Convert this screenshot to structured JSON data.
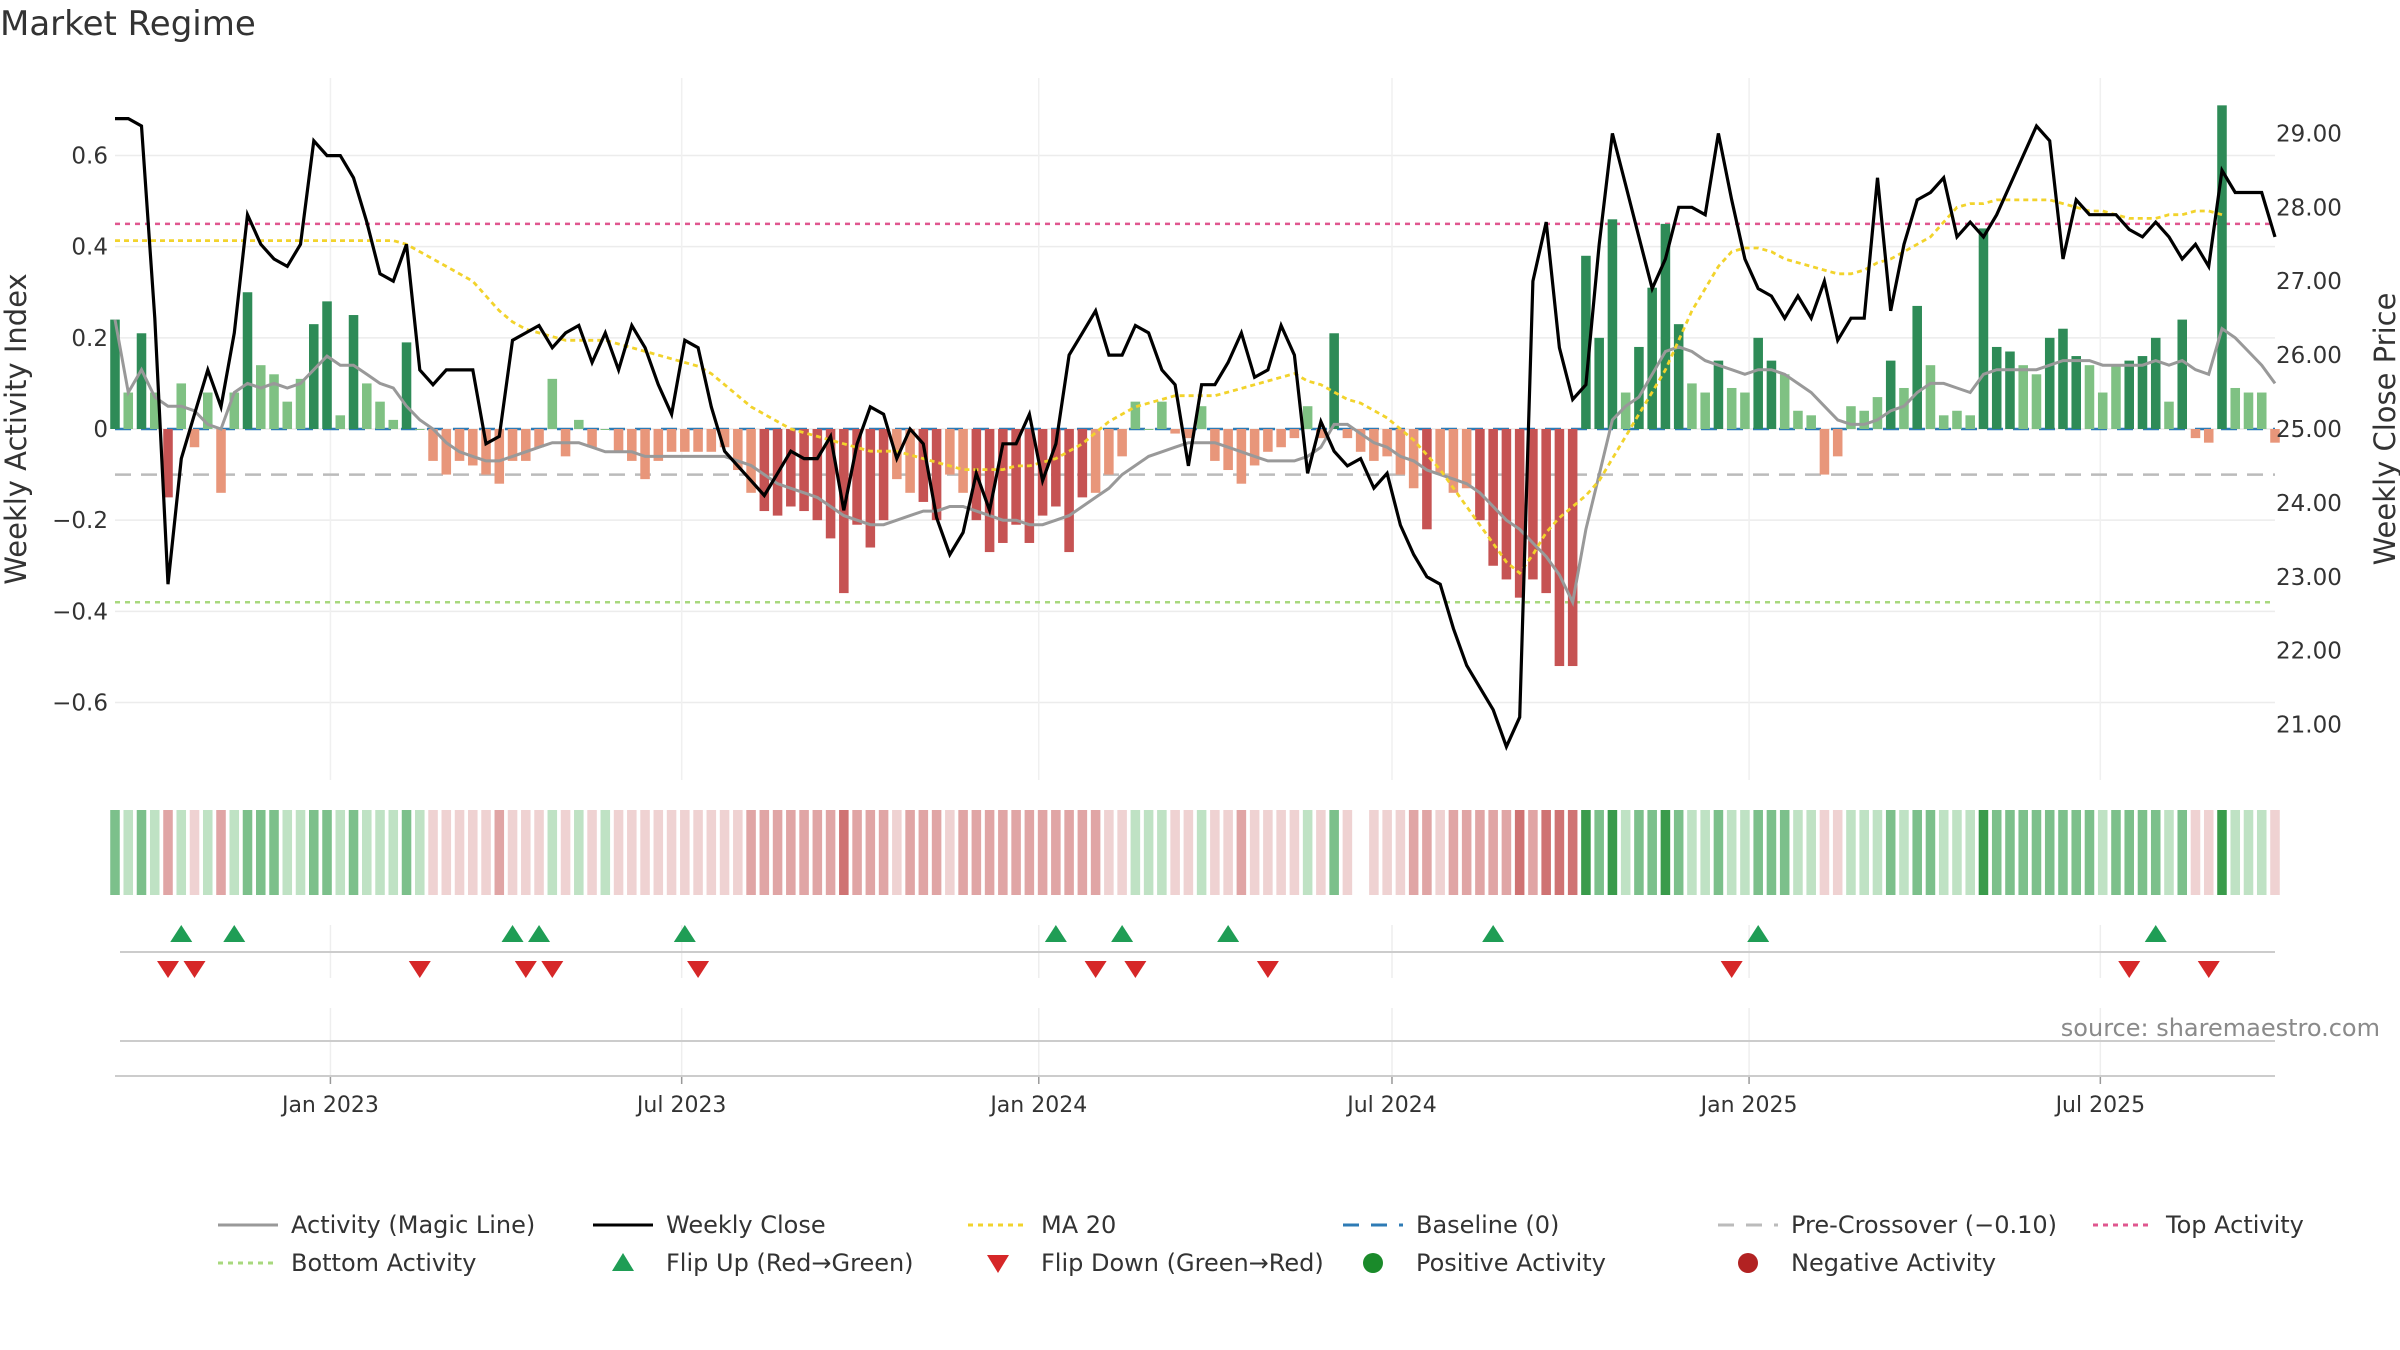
{
  "title": "Market Regime",
  "source": "source: sharemaestro.com",
  "chart_data": {
    "type": "bar",
    "title": "Market Regime",
    "ylabel_left": "Weekly Activity Index",
    "ylabel_right": "Weekly Close Price",
    "ylim_left": [
      -0.77,
      0.77
    ],
    "ylim_right": [
      20.25,
      29.75
    ],
    "yticks_left": [
      -0.6,
      -0.4,
      -0.2,
      0,
      0.2,
      0.4,
      0.6
    ],
    "yticks_left_labels": [
      "−0.6",
      "−0.4",
      "−0.2",
      "0",
      "0.2",
      "0.4",
      "0.6"
    ],
    "yticks_right": [
      21,
      22,
      23,
      24,
      25,
      26,
      27,
      28,
      29
    ],
    "yticks_right_labels": [
      "21.00",
      "22.00",
      "23.00",
      "24.00",
      "25.00",
      "26.00",
      "27.00",
      "28.00",
      "29.00"
    ],
    "x_start": "2022-09-12",
    "x_end": "2025-09-29",
    "x_ticks": [
      "2023-01-01",
      "2023-07-01",
      "2024-01-01",
      "2024-07-01",
      "2025-01-01",
      "2025-07-01"
    ],
    "x_tick_labels": [
      "Jan 2023",
      "Jul 2023",
      "Jan 2024",
      "Jul 2024",
      "Jan 2025",
      "Jul 2025"
    ],
    "grid": true,
    "legend_position": "bottom",
    "reference_lines": {
      "baseline": 0,
      "pre_crossover": -0.1,
      "top_activity": 0.45,
      "bottom_activity": -0.38
    },
    "colors": {
      "pos_strong": "#2e8b57",
      "pos_light": "#7fc183",
      "neg_strong": "#c65353",
      "neg_light": "#e8967a",
      "close": "#000000",
      "magic": "#999999",
      "ma20": "#f2d32c",
      "baseline": "#2e7bb5",
      "pre_crossover": "#bbbbbb",
      "top_activity": "#e0578f",
      "bottom_activity": "#a8d87e",
      "flip_up": "#1f9d55",
      "flip_down": "#d62728",
      "positive_dot": "#1a8a2a",
      "negative_dot": "#b22222"
    },
    "activity": [
      0.24,
      0.08,
      0.21,
      0.08,
      -0.15,
      0.1,
      -0.04,
      0.08,
      -0.14,
      0.08,
      0.3,
      0.14,
      0.12,
      0.06,
      0.11,
      0.23,
      0.28,
      0.03,
      0.25,
      0.1,
      0.06,
      0.02,
      0.19,
      0.0,
      -0.07,
      -0.1,
      -0.07,
      -0.08,
      -0.1,
      -0.12,
      -0.07,
      -0.07,
      -0.04,
      0.11,
      -0.06,
      0.02,
      -0.04,
      0.0,
      -0.05,
      -0.07,
      -0.11,
      -0.07,
      -0.05,
      -0.05,
      -0.05,
      -0.05,
      -0.04,
      -0.09,
      -0.14,
      -0.18,
      -0.19,
      -0.17,
      -0.18,
      -0.2,
      -0.24,
      -0.36,
      -0.21,
      -0.26,
      -0.2,
      -0.11,
      -0.14,
      -0.16,
      -0.2,
      -0.1,
      -0.14,
      -0.2,
      -0.27,
      -0.25,
      -0.21,
      -0.25,
      -0.19,
      -0.17,
      -0.27,
      -0.15,
      -0.14,
      -0.1,
      -0.06,
      0.06,
      0.0,
      0.06,
      -0.01,
      -0.02,
      0.05,
      -0.07,
      -0.09,
      -0.12,
      -0.08,
      -0.05,
      -0.04,
      -0.02,
      0.05,
      -0.02,
      0.21,
      -0.02,
      -0.05,
      -0.07,
      -0.06,
      -0.1,
      -0.13,
      -0.22,
      -0.1,
      -0.14,
      -0.13,
      -0.2,
      -0.3,
      -0.33,
      -0.37,
      -0.33,
      -0.36,
      -0.52,
      -0.52,
      0.38,
      0.2,
      0.46,
      0.08,
      0.18,
      0.31,
      0.45,
      0.23,
      0.1,
      0.08,
      0.15,
      0.09,
      0.08,
      0.2,
      0.15,
      0.12,
      0.04,
      0.03,
      -0.1,
      -0.06,
      0.05,
      0.04,
      0.07,
      0.15,
      0.09,
      0.27,
      0.14,
      0.03,
      0.04,
      0.03,
      0.44,
      0.18,
      0.17,
      0.14,
      0.12,
      0.2,
      0.22,
      0.16,
      0.14,
      0.08,
      0.14,
      0.15,
      0.16,
      0.2,
      0.06,
      0.24,
      -0.02,
      -0.03,
      0.71,
      0.09,
      0.08,
      0.08,
      -0.03
    ],
    "close": [
      29.2,
      29.2,
      29.1,
      26.5,
      22.9,
      24.6,
      25.2,
      25.8,
      25.3,
      26.3,
      27.9,
      27.5,
      27.3,
      27.2,
      27.5,
      28.9,
      28.7,
      28.7,
      28.4,
      27.8,
      27.1,
      27.0,
      27.5,
      25.8,
      25.6,
      25.8,
      25.8,
      25.8,
      24.8,
      24.9,
      26.2,
      26.3,
      26.4,
      26.1,
      26.3,
      26.4,
      25.9,
      26.3,
      25.8,
      26.4,
      26.1,
      25.6,
      25.2,
      26.2,
      26.1,
      25.3,
      24.7,
      24.5,
      24.3,
      24.1,
      24.4,
      24.7,
      24.6,
      24.6,
      24.9,
      23.9,
      24.8,
      25.3,
      25.2,
      24.6,
      25.0,
      24.8,
      23.8,
      23.3,
      23.6,
      24.4,
      23.9,
      24.8,
      24.8,
      25.2,
      24.3,
      24.8,
      26.0,
      26.3,
      26.6,
      26.0,
      26.0,
      26.4,
      26.3,
      25.8,
      25.6,
      24.5,
      25.6,
      25.6,
      25.9,
      26.3,
      25.7,
      25.8,
      26.4,
      26.0,
      24.4,
      25.1,
      24.7,
      24.5,
      24.6,
      24.2,
      24.4,
      23.7,
      23.3,
      23.0,
      22.9,
      22.3,
      21.8,
      21.5,
      21.2,
      20.7,
      21.1,
      27.0,
      27.8,
      26.1,
      25.4,
      25.6,
      27.5,
      29.0,
      28.3,
      27.6,
      26.9,
      27.3,
      28.0,
      28.0,
      27.9,
      29.0,
      28.1,
      27.3,
      26.9,
      26.8,
      26.5,
      26.8,
      26.5,
      27.0,
      26.2,
      26.5,
      26.5,
      28.4,
      26.6,
      27.5,
      28.1,
      28.2,
      28.4,
      27.6,
      27.8,
      27.6,
      27.9,
      28.3,
      28.7,
      29.1,
      28.9,
      27.3,
      28.1,
      27.9,
      27.9,
      27.9,
      27.7,
      27.6,
      27.8,
      27.6,
      27.3,
      27.5,
      27.2,
      28.5,
      28.2,
      28.2,
      28.2,
      27.6
    ],
    "magic": [
      0.24,
      0.08,
      0.13,
      0.07,
      0.05,
      0.05,
      0.04,
      0.01,
      0.0,
      0.08,
      0.1,
      0.09,
      0.1,
      0.09,
      0.1,
      0.13,
      0.16,
      0.14,
      0.14,
      0.12,
      0.1,
      0.09,
      0.05,
      0.02,
      0.0,
      -0.03,
      -0.05,
      -0.06,
      -0.07,
      -0.07,
      -0.06,
      -0.05,
      -0.04,
      -0.03,
      -0.03,
      -0.03,
      -0.04,
      -0.05,
      -0.05,
      -0.05,
      -0.06,
      -0.06,
      -0.06,
      -0.06,
      -0.06,
      -0.06,
      -0.06,
      -0.07,
      -0.08,
      -0.1,
      -0.12,
      -0.13,
      -0.14,
      -0.15,
      -0.17,
      -0.19,
      -0.2,
      -0.21,
      -0.21,
      -0.2,
      -0.19,
      -0.18,
      -0.18,
      -0.17,
      -0.17,
      -0.18,
      -0.19,
      -0.2,
      -0.2,
      -0.21,
      -0.21,
      -0.2,
      -0.19,
      -0.17,
      -0.15,
      -0.13,
      -0.1,
      -0.08,
      -0.06,
      -0.05,
      -0.04,
      -0.03,
      -0.03,
      -0.03,
      -0.04,
      -0.05,
      -0.06,
      -0.07,
      -0.07,
      -0.07,
      -0.06,
      -0.04,
      0.01,
      0.01,
      -0.01,
      -0.03,
      -0.04,
      -0.06,
      -0.07,
      -0.09,
      -0.1,
      -0.11,
      -0.12,
      -0.14,
      -0.17,
      -0.2,
      -0.22,
      -0.25,
      -0.28,
      -0.32,
      -0.38,
      -0.22,
      -0.1,
      0.02,
      0.05,
      0.07,
      0.12,
      0.17,
      0.18,
      0.17,
      0.15,
      0.14,
      0.13,
      0.12,
      0.13,
      0.13,
      0.12,
      0.1,
      0.08,
      0.05,
      0.02,
      0.01,
      0.01,
      0.02,
      0.04,
      0.05,
      0.08,
      0.1,
      0.1,
      0.09,
      0.08,
      0.12,
      0.13,
      0.13,
      0.13,
      0.13,
      0.14,
      0.15,
      0.15,
      0.15,
      0.14,
      0.14,
      0.14,
      0.14,
      0.15,
      0.14,
      0.15,
      0.13,
      0.12,
      0.22,
      0.2,
      0.17,
      0.14,
      0.1
    ],
    "ma20": [
      27.55,
      27.55,
      27.55,
      27.55,
      27.55,
      27.55,
      27.55,
      27.55,
      27.55,
      27.55,
      27.55,
      27.55,
      27.55,
      27.55,
      27.55,
      27.55,
      27.55,
      27.55,
      27.55,
      27.55,
      27.55,
      27.55,
      27.5,
      27.4,
      27.3,
      27.2,
      27.1,
      27.0,
      26.8,
      26.6,
      26.45,
      26.35,
      26.3,
      26.25,
      26.2,
      26.2,
      26.2,
      26.2,
      26.15,
      26.1,
      26.05,
      26.0,
      25.95,
      25.9,
      25.85,
      25.75,
      25.6,
      25.45,
      25.3,
      25.2,
      25.1,
      25.0,
      24.95,
      24.9,
      24.85,
      24.8,
      24.75,
      24.7,
      24.7,
      24.7,
      24.65,
      24.6,
      24.55,
      24.5,
      24.45,
      24.45,
      24.45,
      24.45,
      24.5,
      24.5,
      24.55,
      24.6,
      24.7,
      24.8,
      24.95,
      25.1,
      25.2,
      25.3,
      25.35,
      25.4,
      25.45,
      25.45,
      25.45,
      25.45,
      25.5,
      25.55,
      25.6,
      25.65,
      25.7,
      25.75,
      25.65,
      25.6,
      25.5,
      25.4,
      25.35,
      25.25,
      25.15,
      25.0,
      24.85,
      24.65,
      24.45,
      24.2,
      23.95,
      23.7,
      23.45,
      23.2,
      23.05,
      23.3,
      23.6,
      23.8,
      23.95,
      24.1,
      24.3,
      24.6,
      24.9,
      25.2,
      25.5,
      25.8,
      26.2,
      26.6,
      26.9,
      27.2,
      27.4,
      27.45,
      27.45,
      27.4,
      27.3,
      27.25,
      27.2,
      27.15,
      27.1,
      27.1,
      27.15,
      27.25,
      27.3,
      27.4,
      27.5,
      27.6,
      27.8,
      28.0,
      28.05,
      28.05,
      28.1,
      28.1,
      28.1,
      28.1,
      28.1,
      28.05,
      28.0,
      27.95,
      27.95,
      27.9,
      27.85,
      27.85,
      27.85,
      27.9,
      27.9,
      27.95,
      27.95,
      27.9
    ],
    "flip_up_weeks": [
      5,
      9,
      30,
      32,
      43,
      71,
      76,
      84,
      104,
      124,
      154
    ],
    "flip_down_weeks": [
      4,
      6,
      23,
      31,
      33,
      44,
      74,
      77,
      87,
      122,
      152,
      158
    ]
  },
  "legend": [
    {
      "label": "Activity (Magic Line)",
      "kind": "line",
      "color": "#999999"
    },
    {
      "label": "Weekly Close",
      "kind": "line",
      "color": "#000000"
    },
    {
      "label": "MA 20",
      "kind": "dotted",
      "color": "#f2d32c"
    },
    {
      "label": "Baseline (0)",
      "kind": "dashed",
      "color": "#2e7bb5"
    },
    {
      "label": "Pre-Crossover (−0.10)",
      "kind": "dashed",
      "color": "#bbbbbb"
    },
    {
      "label": "Top Activity",
      "kind": "dotted",
      "color": "#e0578f"
    },
    {
      "label": "Bottom Activity",
      "kind": "dotted",
      "color": "#a8d87e"
    },
    {
      "label": "Flip Up (Red→Green)",
      "kind": "triangle-up",
      "color": "#1f9d55"
    },
    {
      "label": "Flip Down (Green→Red)",
      "kind": "triangle-down",
      "color": "#d62728"
    },
    {
      "label": "Positive Activity",
      "kind": "dot",
      "color": "#1a8a2a"
    },
    {
      "label": "Negative Activity",
      "kind": "dot",
      "color": "#b22222"
    }
  ]
}
